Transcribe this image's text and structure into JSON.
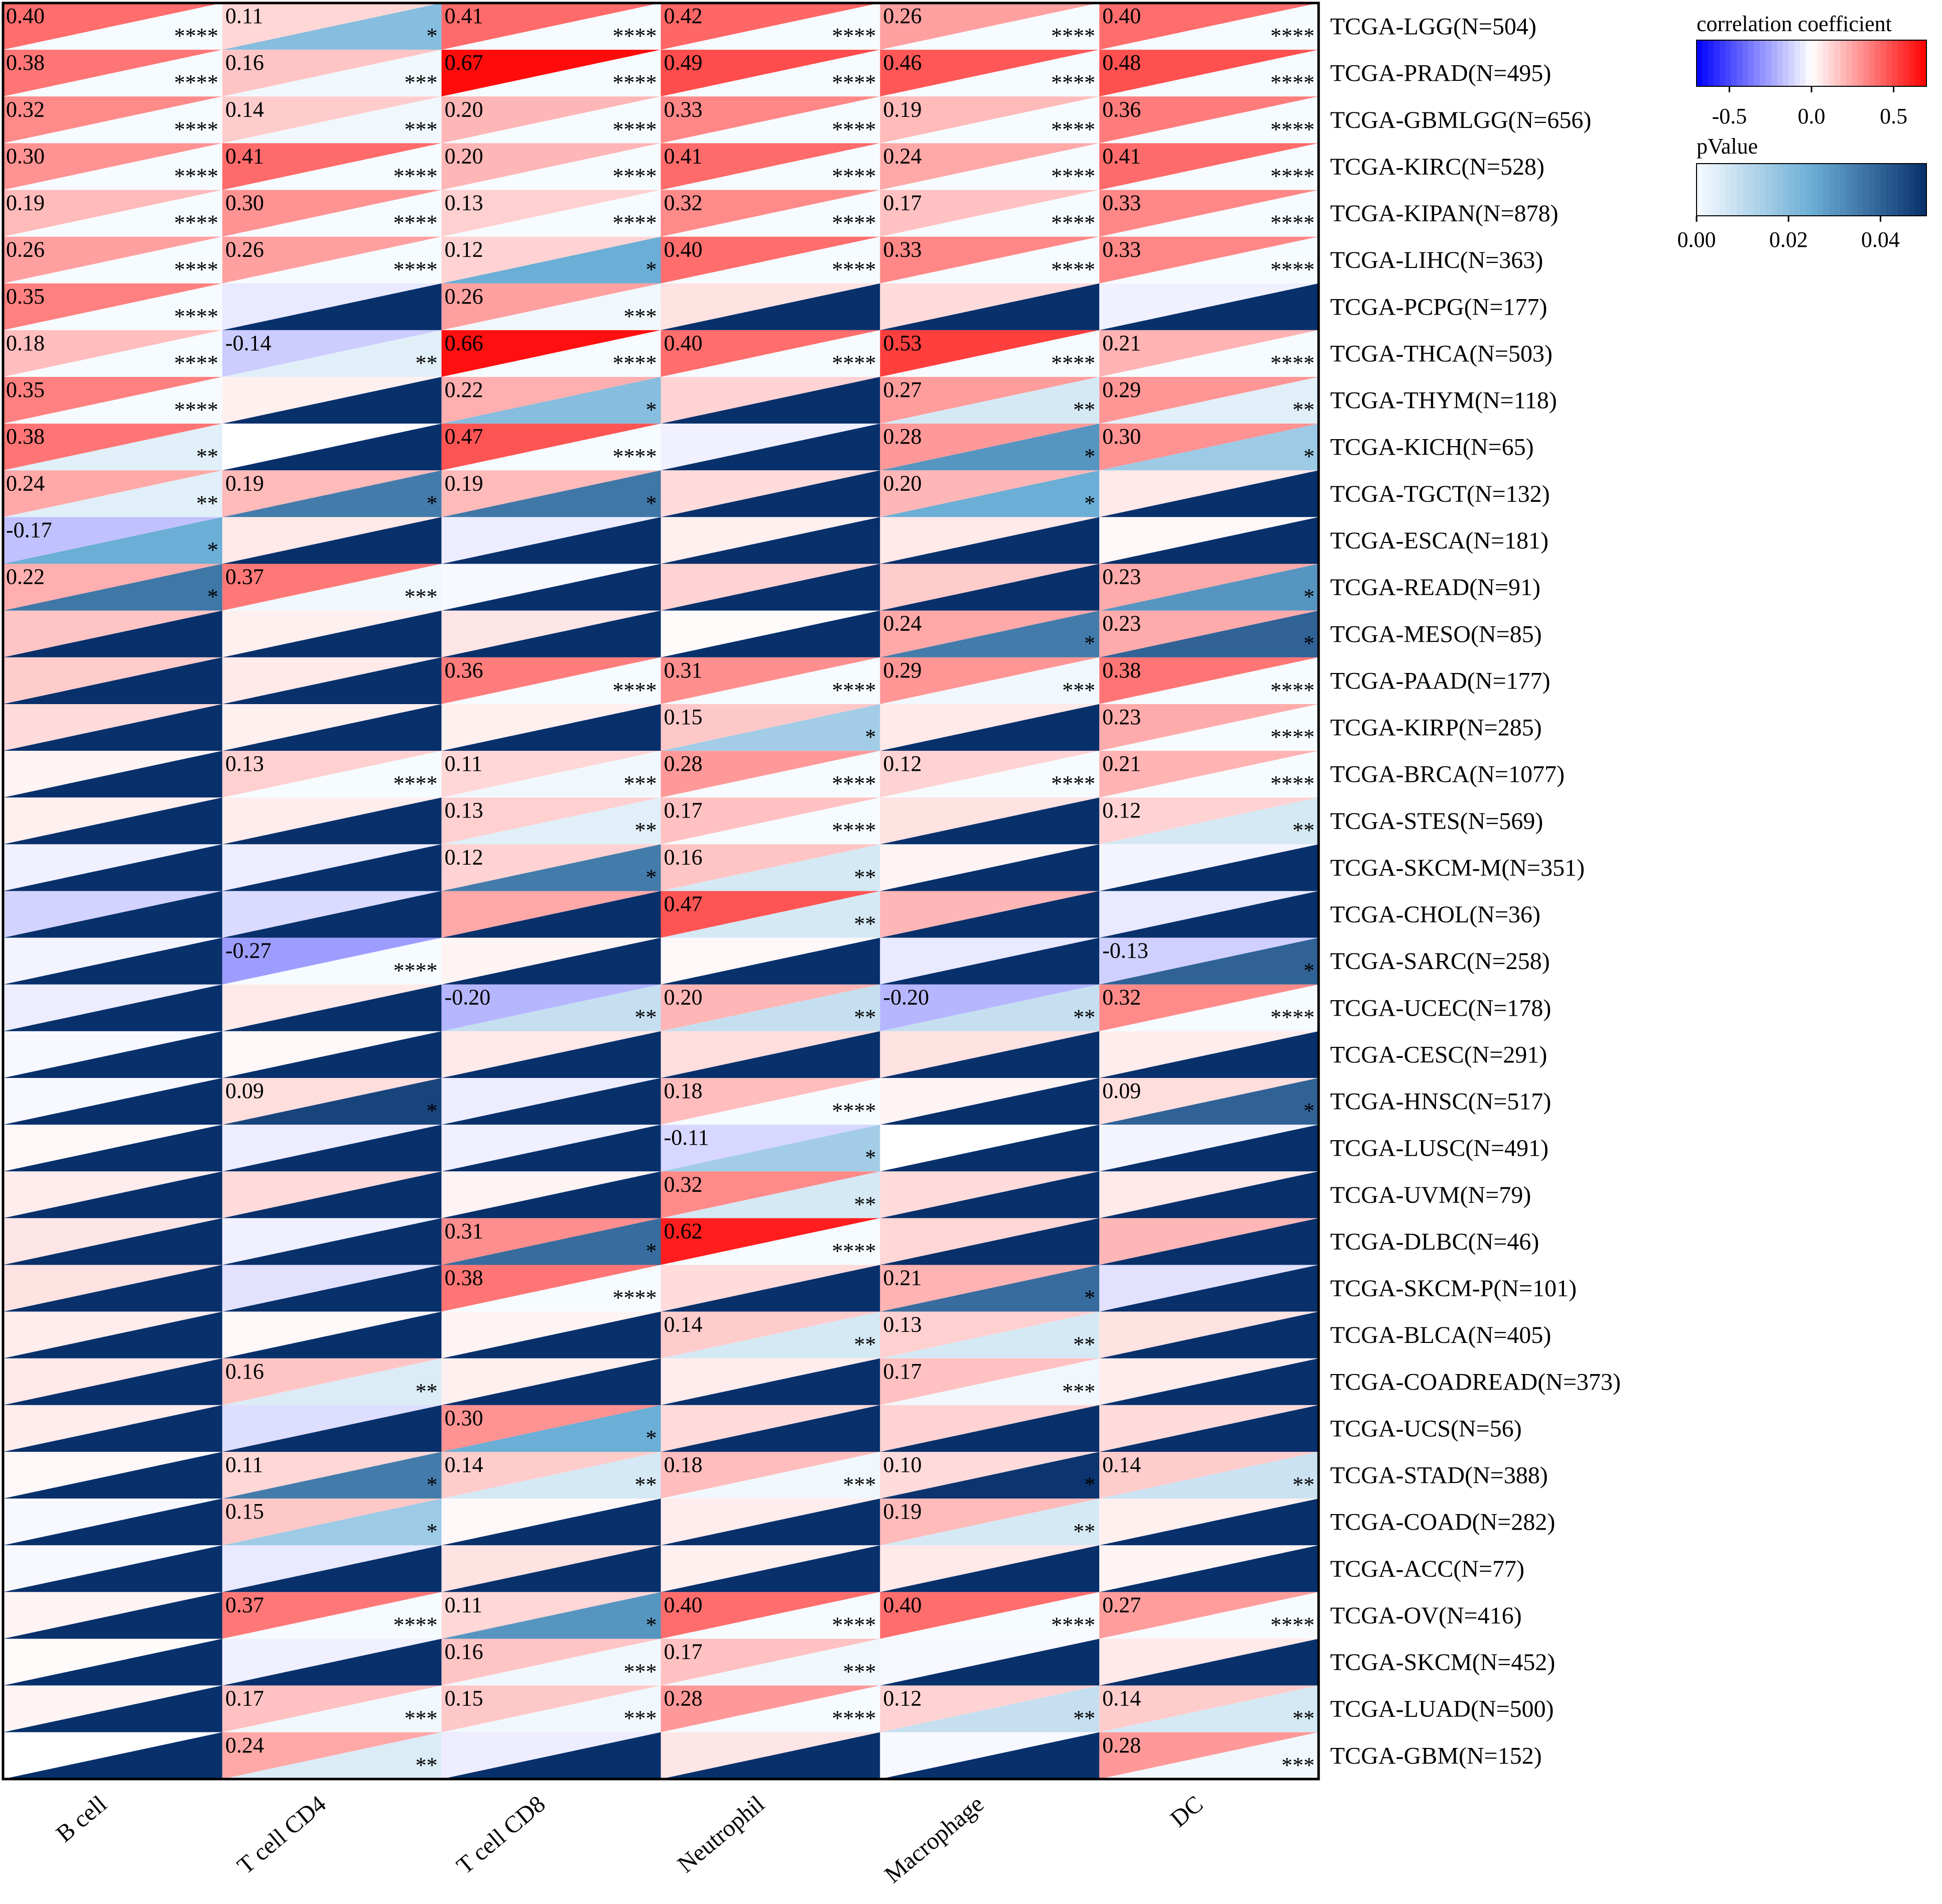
{
  "chart_data": {
    "type": "heatmap",
    "title": "",
    "xlabel": "",
    "ylabel": "",
    "encoding": "each cell split diagonally: upper-left triangle = correlation coefficient, lower-right triangle = pValue; text = coefficient and significance stars (shown only when significant)",
    "columns": [
      "B cell",
      "T cell CD4",
      "T cell CD8",
      "Neutrophil",
      "Macrophage",
      "DC"
    ],
    "rows": [
      "TCGA-LGG(N=504)",
      "TCGA-PRAD(N=495)",
      "TCGA-GBMLGG(N=656)",
      "TCGA-KIRC(N=528)",
      "TCGA-KIPAN(N=878)",
      "TCGA-LIHC(N=363)",
      "TCGA-PCPG(N=177)",
      "TCGA-THCA(N=503)",
      "TCGA-THYM(N=118)",
      "TCGA-KICH(N=65)",
      "TCGA-TGCT(N=132)",
      "TCGA-ESCA(N=181)",
      "TCGA-READ(N=91)",
      "TCGA-MESO(N=85)",
      "TCGA-PAAD(N=177)",
      "TCGA-KIRP(N=285)",
      "TCGA-BRCA(N=1077)",
      "TCGA-STES(N=569)",
      "TCGA-SKCM-M(N=351)",
      "TCGA-CHOL(N=36)",
      "TCGA-SARC(N=258)",
      "TCGA-UCEC(N=178)",
      "TCGA-CESC(N=291)",
      "TCGA-HNSC(N=517)",
      "TCGA-LUSC(N=491)",
      "TCGA-UVM(N=79)",
      "TCGA-DLBC(N=46)",
      "TCGA-SKCM-P(N=101)",
      "TCGA-BLCA(N=405)",
      "TCGA-COADREAD(N=373)",
      "TCGA-UCS(N=56)",
      "TCGA-STAD(N=388)",
      "TCGA-COAD(N=282)",
      "TCGA-ACC(N=77)",
      "TCGA-OV(N=416)",
      "TCGA-SKCM(N=452)",
      "TCGA-LUAD(N=500)",
      "TCGA-GBM(N=152)"
    ],
    "coefficients": [
      [
        0.4,
        0.11,
        0.41,
        0.42,
        0.26,
        0.4
      ],
      [
        0.38,
        0.16,
        0.67,
        0.49,
        0.46,
        0.48
      ],
      [
        0.32,
        0.14,
        0.2,
        0.33,
        0.19,
        0.36
      ],
      [
        0.3,
        0.41,
        0.2,
        0.41,
        0.24,
        0.41
      ],
      [
        0.19,
        0.3,
        0.13,
        0.32,
        0.17,
        0.33
      ],
      [
        0.26,
        0.26,
        0.12,
        0.4,
        0.33,
        0.33
      ],
      [
        0.35,
        -0.06,
        0.26,
        0.08,
        0.1,
        -0.04
      ],
      [
        0.18,
        -0.14,
        0.66,
        0.4,
        0.53,
        0.21
      ],
      [
        0.35,
        0.04,
        0.22,
        0.12,
        0.27,
        0.29
      ],
      [
        0.38,
        0.0,
        0.47,
        -0.04,
        0.28,
        0.3
      ],
      [
        0.24,
        0.19,
        0.19,
        0.1,
        0.2,
        0.06
      ],
      [
        -0.17,
        0.06,
        -0.05,
        0.04,
        0.06,
        0.02
      ],
      [
        0.22,
        0.37,
        -0.02,
        0.12,
        0.14,
        0.23
      ],
      [
        0.16,
        0.04,
        0.07,
        0.01,
        0.24,
        0.23
      ],
      [
        0.14,
        0.06,
        0.36,
        0.31,
        0.29,
        0.38
      ],
      [
        0.1,
        0.04,
        0.04,
        0.15,
        0.06,
        0.23
      ],
      [
        0.03,
        0.13,
        0.11,
        0.28,
        0.12,
        0.21
      ],
      [
        0.04,
        0.05,
        0.13,
        0.17,
        0.08,
        0.12
      ],
      [
        -0.04,
        -0.05,
        0.12,
        0.16,
        0.03,
        -0.03
      ],
      [
        -0.12,
        -0.1,
        0.24,
        0.47,
        0.2,
        -0.06
      ],
      [
        -0.03,
        -0.27,
        0.03,
        0.02,
        -0.06,
        -0.13
      ],
      [
        -0.05,
        0.06,
        -0.2,
        0.2,
        -0.2,
        0.32
      ],
      [
        -0.02,
        0.02,
        0.06,
        0.09,
        0.08,
        0.05
      ],
      [
        -0.02,
        0.09,
        -0.05,
        0.18,
        0.03,
        0.09
      ],
      [
        0.02,
        -0.05,
        -0.04,
        -0.11,
        0.0,
        -0.03
      ],
      [
        0.05,
        0.1,
        0.03,
        0.32,
        0.1,
        0.06
      ],
      [
        0.07,
        -0.04,
        0.31,
        0.62,
        0.11,
        0.2
      ],
      [
        0.08,
        -0.08,
        0.38,
        0.1,
        0.21,
        -0.08
      ],
      [
        0.05,
        0.02,
        0.03,
        0.14,
        0.13,
        0.08
      ],
      [
        0.06,
        0.16,
        0.04,
        0.05,
        0.17,
        0.05
      ],
      [
        0.05,
        -0.09,
        0.3,
        0.1,
        0.12,
        0.1
      ],
      [
        0.02,
        0.11,
        0.14,
        0.18,
        0.1,
        0.14
      ],
      [
        -0.02,
        0.15,
        0.02,
        0.05,
        0.19,
        0.04
      ],
      [
        -0.02,
        -0.06,
        0.08,
        0.04,
        0.06,
        0.03
      ],
      [
        0.03,
        0.37,
        0.11,
        0.4,
        0.4,
        0.27
      ],
      [
        0.01,
        -0.04,
        0.16,
        0.17,
        -0.02,
        0.06
      ],
      [
        0.03,
        0.17,
        0.15,
        0.28,
        0.12,
        0.14
      ],
      [
        0.0,
        0.24,
        -0.05,
        0.07,
        -0.02,
        0.28
      ]
    ],
    "p_values": [
      [
        0.0001,
        0.02,
        0.0001,
        0.0001,
        0.0001,
        0.0001
      ],
      [
        0.0001,
        0.001,
        0.0001,
        0.0001,
        0.0001,
        0.0001
      ],
      [
        0.0001,
        0.001,
        0.0001,
        0.0001,
        0.0001,
        0.0001
      ],
      [
        0.0001,
        0.0001,
        0.0001,
        0.0001,
        0.0001,
        0.0001
      ],
      [
        0.0001,
        0.0001,
        0.0001,
        0.0001,
        0.0001,
        0.0001
      ],
      [
        0.0001,
        0.0001,
        0.025,
        0.0001,
        0.0001,
        0.0001
      ],
      [
        0.0001,
        0.05,
        0.001,
        0.05,
        0.05,
        0.05
      ],
      [
        0.0001,
        0.004,
        0.0001,
        0.0001,
        0.0001,
        0.0001
      ],
      [
        0.0001,
        0.05,
        0.02,
        0.05,
        0.006,
        0.004
      ],
      [
        0.004,
        0.05,
        0.0001,
        0.05,
        0.03,
        0.016
      ],
      [
        0.004,
        0.035,
        0.036,
        0.05,
        0.025,
        0.05
      ],
      [
        0.025,
        0.05,
        0.05,
        0.05,
        0.05,
        0.05
      ],
      [
        0.036,
        0.001,
        0.05,
        0.05,
        0.05,
        0.03
      ],
      [
        0.05,
        0.05,
        0.05,
        0.05,
        0.035,
        0.04
      ],
      [
        0.05,
        0.05,
        0.0001,
        0.0001,
        0.001,
        0.0001
      ],
      [
        0.05,
        0.05,
        0.05,
        0.015,
        0.05,
        0.0001
      ],
      [
        0.05,
        0.0001,
        0.001,
        0.0001,
        0.0001,
        0.0001
      ],
      [
        0.05,
        0.05,
        0.004,
        0.0001,
        0.05,
        0.006
      ],
      [
        0.05,
        0.05,
        0.035,
        0.006,
        0.05,
        0.05
      ],
      [
        0.05,
        0.05,
        0.05,
        0.006,
        0.05,
        0.05
      ],
      [
        0.05,
        0.0001,
        0.05,
        0.05,
        0.05,
        0.04
      ],
      [
        0.05,
        0.05,
        0.009,
        0.009,
        0.009,
        0.0001
      ],
      [
        0.05,
        0.05,
        0.05,
        0.05,
        0.05,
        0.05
      ],
      [
        0.05,
        0.046,
        0.05,
        0.0001,
        0.05,
        0.04
      ],
      [
        0.05,
        0.05,
        0.05,
        0.015,
        0.05,
        0.05
      ],
      [
        0.05,
        0.05,
        0.05,
        0.006,
        0.05,
        0.05
      ],
      [
        0.05,
        0.05,
        0.038,
        0.0001,
        0.05,
        0.05
      ],
      [
        0.05,
        0.05,
        0.0001,
        0.05,
        0.038,
        0.05
      ],
      [
        0.05,
        0.05,
        0.05,
        0.006,
        0.006,
        0.05
      ],
      [
        0.05,
        0.005,
        0.05,
        0.05,
        0.001,
        0.05
      ],
      [
        0.05,
        0.05,
        0.025,
        0.05,
        0.05,
        0.05
      ],
      [
        0.05,
        0.035,
        0.006,
        0.001,
        0.049,
        0.008
      ],
      [
        0.05,
        0.016,
        0.05,
        0.05,
        0.006,
        0.05
      ],
      [
        0.05,
        0.05,
        0.05,
        0.05,
        0.05,
        0.05
      ],
      [
        0.05,
        0.0001,
        0.03,
        0.0001,
        0.0001,
        0.0001
      ],
      [
        0.05,
        0.05,
        0.001,
        0.001,
        0.05,
        0.05
      ],
      [
        0.05,
        0.001,
        0.001,
        0.0001,
        0.009,
        0.006
      ],
      [
        0.05,
        0.005,
        0.05,
        0.05,
        0.05,
        0.001
      ]
    ],
    "significance": [
      [
        "****",
        "*",
        "****",
        "****",
        "****",
        "****"
      ],
      [
        "****",
        "***",
        "****",
        "****",
        "****",
        "****"
      ],
      [
        "****",
        "***",
        "****",
        "****",
        "****",
        "****"
      ],
      [
        "****",
        "****",
        "****",
        "****",
        "****",
        "****"
      ],
      [
        "****",
        "****",
        "****",
        "****",
        "****",
        "****"
      ],
      [
        "****",
        "****",
        "*",
        "****",
        "****",
        "****"
      ],
      [
        "****",
        "",
        "***",
        "",
        "",
        ""
      ],
      [
        "****",
        "**",
        "****",
        "****",
        "****",
        "****"
      ],
      [
        "****",
        "",
        "*",
        "",
        "**",
        "**"
      ],
      [
        "**",
        "",
        "****",
        "",
        "*",
        "*"
      ],
      [
        "**",
        "*",
        "*",
        "",
        "*",
        ""
      ],
      [
        "*",
        "",
        "",
        "",
        "",
        ""
      ],
      [
        "*",
        "***",
        "",
        "",
        "",
        "*"
      ],
      [
        "",
        "",
        "",
        "",
        "*",
        "*"
      ],
      [
        "",
        "",
        "****",
        "****",
        "***",
        "****"
      ],
      [
        "",
        "",
        "",
        "*",
        "",
        "****"
      ],
      [
        "",
        "****",
        "***",
        "****",
        "****",
        "****"
      ],
      [
        "",
        "",
        "**",
        "****",
        "",
        "**"
      ],
      [
        "",
        "",
        "*",
        "**",
        "",
        ""
      ],
      [
        "",
        "",
        "",
        "**",
        "",
        ""
      ],
      [
        "",
        "****",
        "",
        "",
        "",
        "*"
      ],
      [
        "",
        "",
        "**",
        "**",
        "**",
        "****"
      ],
      [
        "",
        "",
        "",
        "",
        "",
        ""
      ],
      [
        "",
        "*",
        "",
        "****",
        "",
        "*"
      ],
      [
        "",
        "",
        "",
        "*",
        "",
        ""
      ],
      [
        "",
        "",
        "",
        "**",
        "",
        ""
      ],
      [
        "",
        "",
        "*",
        "****",
        "",
        ""
      ],
      [
        "",
        "",
        "****",
        "",
        "*",
        ""
      ],
      [
        "",
        "",
        "",
        "**",
        "**",
        ""
      ],
      [
        "",
        "**",
        "",
        "",
        "***",
        ""
      ],
      [
        "",
        "",
        "*",
        "",
        "",
        ""
      ],
      [
        "",
        "*",
        "**",
        "***",
        "*",
        "**"
      ],
      [
        "",
        "*",
        "",
        "",
        "**",
        ""
      ],
      [
        "",
        "",
        "",
        "",
        "",
        ""
      ],
      [
        "",
        "****",
        "*",
        "****",
        "****",
        "****"
      ],
      [
        "",
        "",
        "***",
        "***",
        "",
        ""
      ],
      [
        "",
        "***",
        "***",
        "****",
        "**",
        "**"
      ],
      [
        "",
        "**",
        "",
        "",
        "",
        "***"
      ]
    ],
    "legend": {
      "placement": "top-right",
      "correlation_title": "correlation coefficient",
      "correlation_range": [
        -0.7,
        0.7
      ],
      "correlation_ticks": [
        "-0.5",
        "0.0",
        "0.5"
      ],
      "correlation_tick_values": [
        -0.5,
        0.0,
        0.5
      ],
      "pvalue_title": "pValue",
      "pvalue_range": [
        0.0,
        0.05
      ],
      "pvalue_ticks": [
        "0.00",
        "0.02",
        "0.04"
      ],
      "pvalue_tick_values": [
        0.0,
        0.02,
        0.04
      ]
    },
    "colors": {
      "neg_max": "#0000ff",
      "zero": "#ffffff",
      "pos_max": "#ff0000",
      "p_low": "#f7fbff",
      "p_mid": "#6baed6",
      "p_high": "#08306b",
      "border": "#000000",
      "text": "#000000"
    }
  }
}
